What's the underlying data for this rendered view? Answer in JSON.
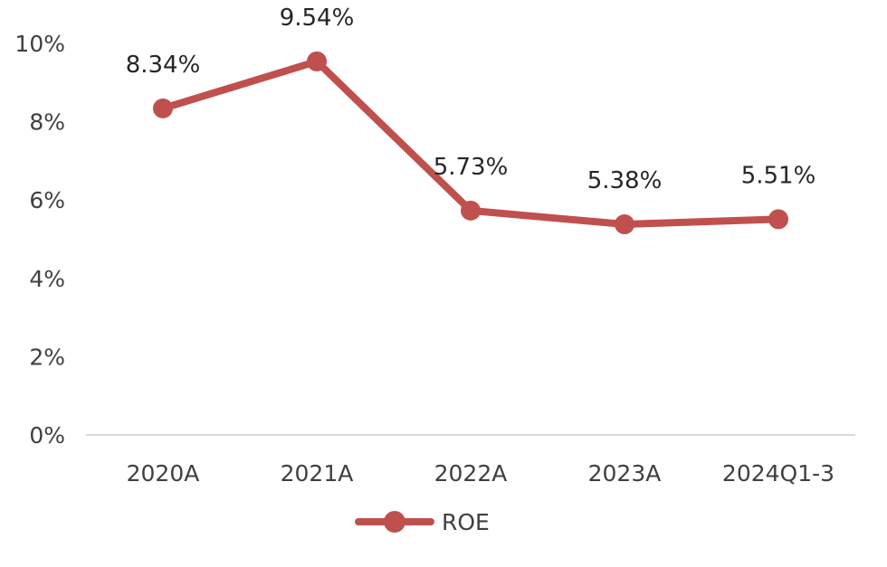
{
  "chart_data": {
    "type": "line",
    "title": "",
    "xlabel": "",
    "ylabel": "",
    "categories": [
      "2020A",
      "2021A",
      "2022A",
      "2023A",
      "2024Q1-3"
    ],
    "series": [
      {
        "name": "ROE",
        "values": [
          8.34,
          9.54,
          5.73,
          5.38,
          5.51
        ],
        "data_labels": [
          "8.34%",
          "9.54%",
          "5.73%",
          "5.38%",
          "5.51%"
        ],
        "color": "#C0504D"
      }
    ],
    "ylim": [
      0,
      10
    ],
    "yticks": [
      {
        "value": 0,
        "label": "0%"
      },
      {
        "value": 2,
        "label": "2%"
      },
      {
        "value": 4,
        "label": "4%"
      },
      {
        "value": 6,
        "label": "6%"
      },
      {
        "value": 8,
        "label": "8%"
      },
      {
        "value": 10,
        "label": "10%"
      }
    ],
    "grid": false,
    "legend_position": "bottom",
    "axis_color": "#D9D9D9"
  }
}
